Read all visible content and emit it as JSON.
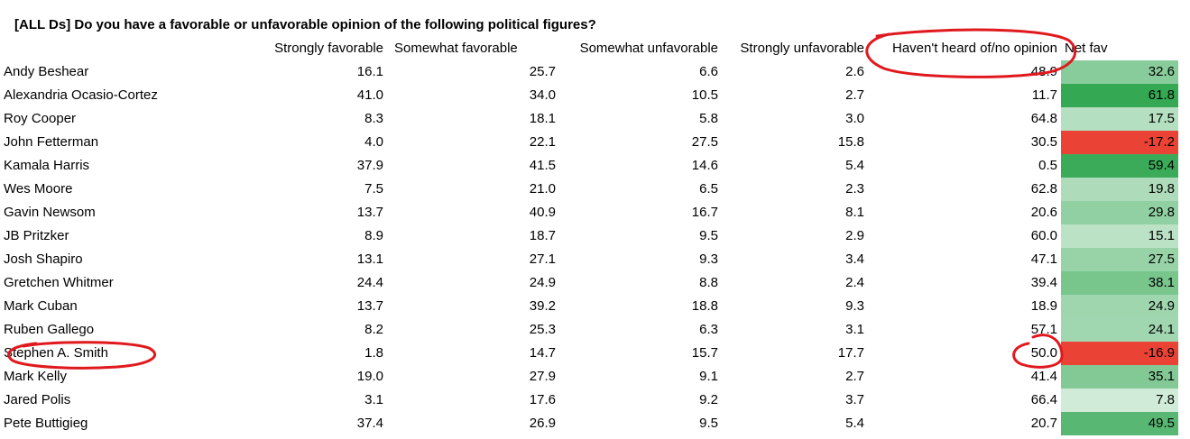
{
  "sheet": {
    "title": "[ALL Ds] Do you have a favorable or unfavorable opinion of the following political figures?",
    "columns": [
      "Strongly favorable",
      "Somewhat favorable",
      "Somewhat unfavorable",
      "Strongly unfavorable",
      "Haven't heard of/no opinion",
      "Net fav"
    ],
    "rows": [
      {
        "name": "Andy Beshear",
        "values": [
          "16.1",
          "25.7",
          "6.6",
          "2.6",
          "48.9"
        ],
        "net": "32.6",
        "net_num": 32.6
      },
      {
        "name": "Alexandria Ocasio-Cortez",
        "values": [
          "41.0",
          "34.0",
          "10.5",
          "2.7",
          "11.7"
        ],
        "net": "61.8",
        "net_num": 61.8
      },
      {
        "name": "Roy Cooper",
        "values": [
          "8.3",
          "18.1",
          "5.8",
          "3.0",
          "64.8"
        ],
        "net": "17.5",
        "net_num": 17.5
      },
      {
        "name": "John Fetterman",
        "values": [
          "4.0",
          "22.1",
          "27.5",
          "15.8",
          "30.5"
        ],
        "net": "-17.2",
        "net_num": -17.2
      },
      {
        "name": "Kamala Harris",
        "values": [
          "37.9",
          "41.5",
          "14.6",
          "5.4",
          "0.5"
        ],
        "net": "59.4",
        "net_num": 59.4
      },
      {
        "name": "Wes Moore",
        "values": [
          "7.5",
          "21.0",
          "6.5",
          "2.3",
          "62.8"
        ],
        "net": "19.8",
        "net_num": 19.8
      },
      {
        "name": "Gavin Newsom",
        "values": [
          "13.7",
          "40.9",
          "16.7",
          "8.1",
          "20.6"
        ],
        "net": "29.8",
        "net_num": 29.8
      },
      {
        "name": "JB Pritzker",
        "values": [
          "8.9",
          "18.7",
          "9.5",
          "2.9",
          "60.0"
        ],
        "net": "15.1",
        "net_num": 15.1
      },
      {
        "name": "Josh Shapiro",
        "values": [
          "13.1",
          "27.1",
          "9.3",
          "3.4",
          "47.1"
        ],
        "net": "27.5",
        "net_num": 27.5
      },
      {
        "name": "Gretchen Whitmer",
        "values": [
          "24.4",
          "24.9",
          "8.8",
          "2.4",
          "39.4"
        ],
        "net": "38.1",
        "net_num": 38.1
      },
      {
        "name": "Mark Cuban",
        "values": [
          "13.7",
          "39.2",
          "18.8",
          "9.3",
          "18.9"
        ],
        "net": "24.9",
        "net_num": 24.9
      },
      {
        "name": "Ruben Gallego",
        "values": [
          "8.2",
          "25.3",
          "6.3",
          "3.1",
          "57.1"
        ],
        "net": "24.1",
        "net_num": 24.1
      },
      {
        "name": "Stephen A. Smith",
        "values": [
          "1.8",
          "14.7",
          "15.7",
          "17.7",
          "50.0"
        ],
        "net": "-16.9",
        "net_num": -16.9
      },
      {
        "name": "Mark Kelly",
        "values": [
          "19.0",
          "27.9",
          "9.1",
          "2.7",
          "41.4"
        ],
        "net": "35.1",
        "net_num": 35.1
      },
      {
        "name": "Jared Polis",
        "values": [
          "3.1",
          "17.6",
          "9.2",
          "3.7",
          "66.4"
        ],
        "net": "7.8",
        "net_num": 7.8
      },
      {
        "name": "Pete Buttigieg",
        "values": [
          "37.4",
          "26.9",
          "9.5",
          "5.4",
          "20.7"
        ],
        "net": "49.5",
        "net_num": 49.5
      }
    ]
  },
  "colors": {
    "positive_max": "#34a853",
    "neutral": "#ffffff",
    "negative": "#ea4335",
    "annotation_ink": "#e0191e"
  }
}
